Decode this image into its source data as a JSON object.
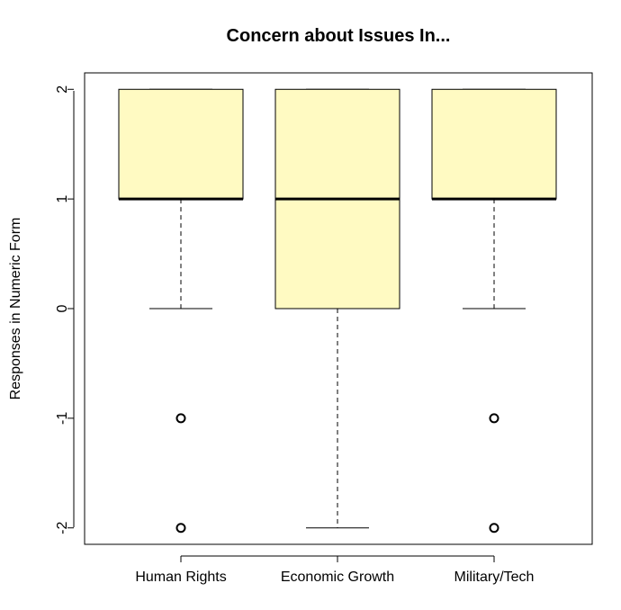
{
  "chart_data": {
    "type": "boxplot",
    "title": "Concern about Issues In...",
    "xlabel": "",
    "ylabel": "Responses in Numeric Form",
    "ylim": [
      -2.15,
      2.15
    ],
    "yticks": [
      "-2",
      "-1",
      "0",
      "1",
      "2"
    ],
    "categories": [
      "Human Rights",
      "Economic Growth",
      "Military/Tech"
    ],
    "series": [
      {
        "category": "Human Rights",
        "lower_whisker": 0,
        "q1": 1,
        "median": 1,
        "q3": 2,
        "upper_whisker": 2,
        "outliers": [
          -1,
          -2
        ]
      },
      {
        "category": "Economic Growth",
        "lower_whisker": -2,
        "q1": 0,
        "median": 1,
        "q3": 2,
        "upper_whisker": 2,
        "outliers": []
      },
      {
        "category": "Military/Tech",
        "lower_whisker": 0,
        "q1": 1,
        "median": 1,
        "q3": 2,
        "upper_whisker": 2,
        "outliers": [
          -1,
          -2
        ]
      }
    ],
    "grid": false,
    "legend": "none",
    "box_fill": "#FFFAC2",
    "line_color": "#000000"
  }
}
